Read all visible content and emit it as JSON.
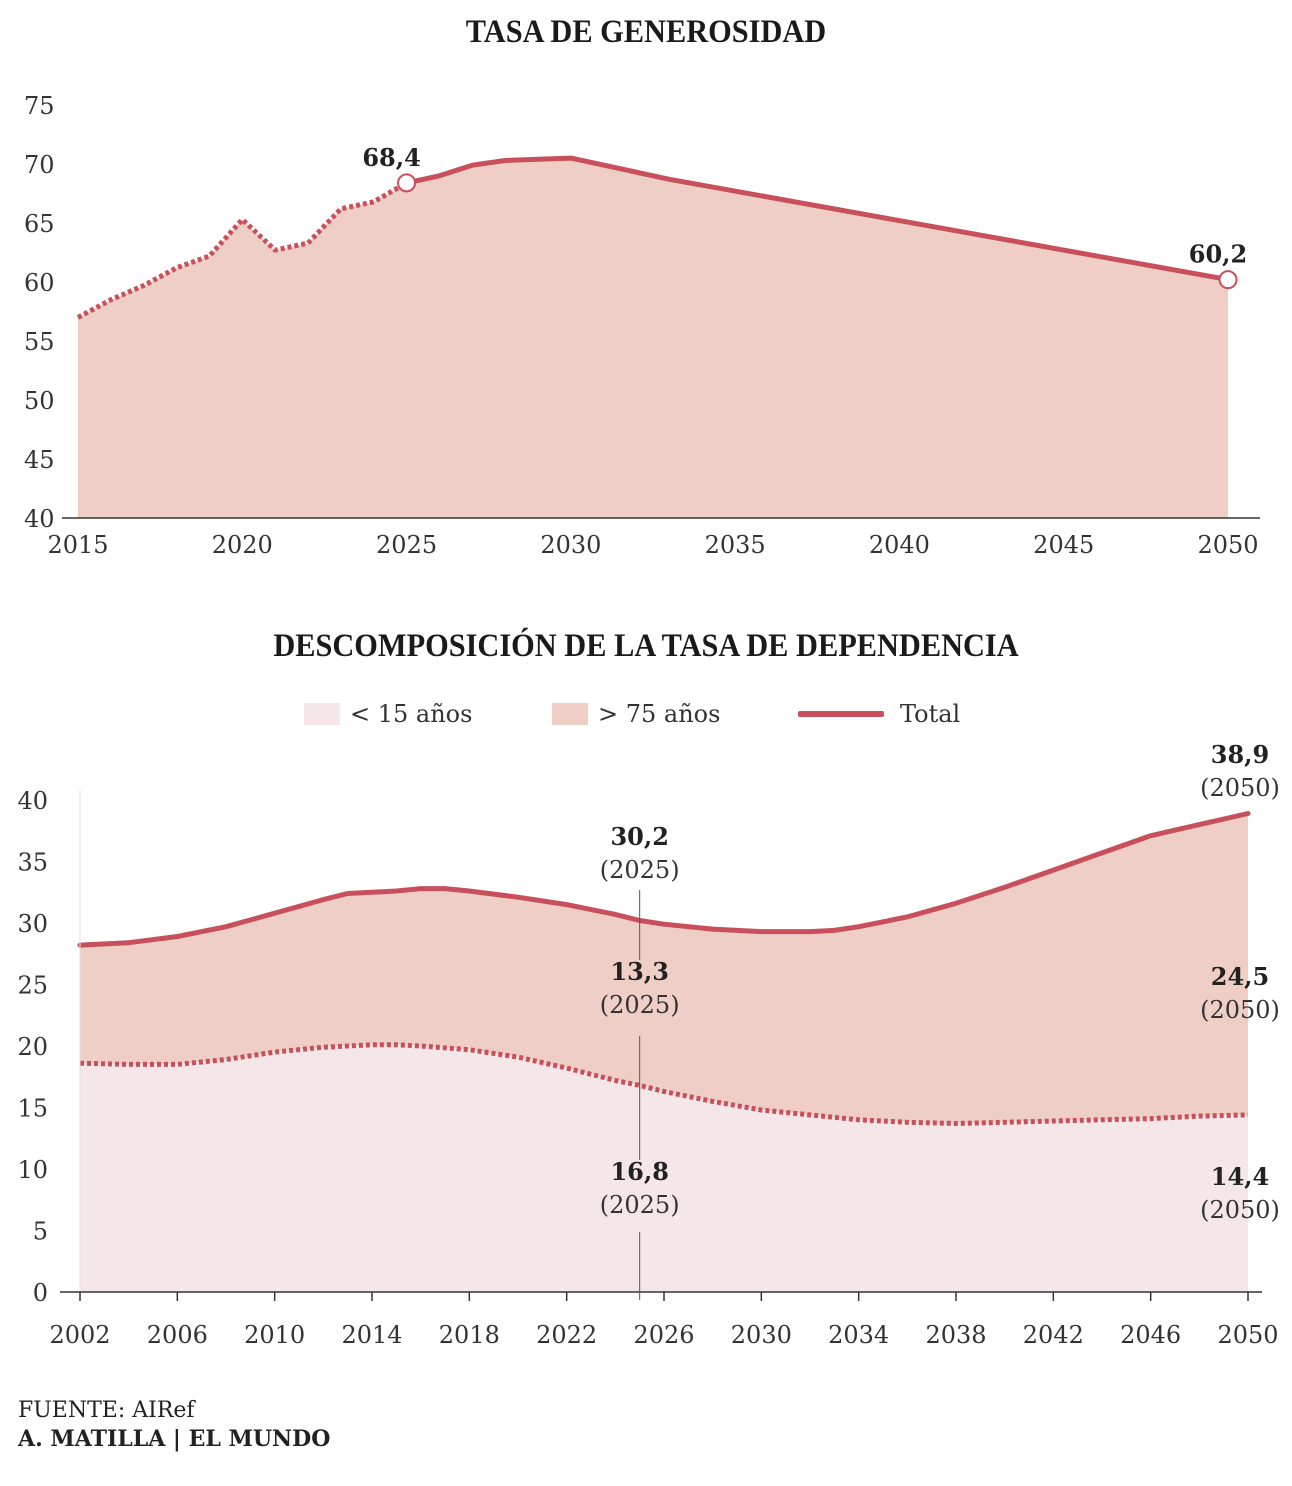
{
  "colors": {
    "line": "#c8505c",
    "area_top": "#efcec6",
    "area_bottom": "#f5e7e8",
    "marker_fill": "#ffffff"
  },
  "chart_data": [
    {
      "type": "area",
      "title": "TASA DE GENEROSIDAD",
      "xlim": [
        2015,
        2050
      ],
      "ylim": [
        40,
        75
      ],
      "x_ticks": [
        "2015",
        "2020",
        "2025",
        "2030",
        "2035",
        "2040",
        "2045",
        "2050"
      ],
      "y_ticks": [
        "40",
        "45",
        "50",
        "55",
        "60",
        "65",
        "70",
        "75"
      ],
      "series": [
        {
          "x": [
            2015,
            2016,
            2017,
            2018,
            2019,
            2020,
            2021,
            2022,
            2023,
            2024,
            2025,
            2026,
            2027,
            2028,
            2029,
            2030,
            2033,
            2050
          ],
          "y": [
            57.0,
            58.5,
            59.7,
            61.2,
            62.2,
            65.3,
            62.7,
            63.3,
            66.2,
            66.8,
            68.4,
            69.0,
            69.9,
            70.3,
            70.4,
            70.5,
            68.7,
            60.2
          ],
          "dashed_until": 2025
        }
      ],
      "annotations": [
        {
          "x": 2025,
          "y": 68.4,
          "label": "68,4"
        },
        {
          "x": 2050,
          "y": 60.2,
          "label": "60,2"
        }
      ]
    },
    {
      "type": "area",
      "title": "DESCOMPOSICIÓN DE LA TASA DE DEPENDENCIA",
      "xlim": [
        2002,
        2050
      ],
      "ylim": [
        0,
        40
      ],
      "x_ticks": [
        "2002",
        "2006",
        "2010",
        "2014",
        "2018",
        "2022",
        "2026",
        "2030",
        "2034",
        "2038",
        "2042",
        "2046",
        "2050"
      ],
      "y_ticks": [
        "0",
        "5",
        "10",
        "15",
        "20",
        "25",
        "30",
        "35",
        "40"
      ],
      "legend": [
        "< 15 años",
        "> 75 años",
        "Total"
      ],
      "series": [
        {
          "name": "< 15 años",
          "x": [
            2002,
            2004,
            2006,
            2008,
            2010,
            2012,
            2014,
            2015,
            2016,
            2018,
            2020,
            2022,
            2024,
            2025,
            2026,
            2028,
            2030,
            2032,
            2034,
            2036,
            2038,
            2040,
            2042,
            2044,
            2046,
            2048,
            2050
          ],
          "y": [
            18.6,
            18.5,
            18.5,
            18.9,
            19.5,
            19.9,
            20.1,
            20.1,
            20.0,
            19.7,
            19.1,
            18.2,
            17.2,
            16.8,
            16.3,
            15.5,
            14.8,
            14.4,
            14.0,
            13.8,
            13.7,
            13.8,
            13.9,
            14.0,
            14.1,
            14.3,
            14.4
          ],
          "dashed": true
        },
        {
          "name": "Total",
          "x": [
            2002,
            2004,
            2006,
            2008,
            2010,
            2012,
            2013,
            2014,
            2015,
            2016,
            2017,
            2018,
            2020,
            2022,
            2024,
            2025,
            2026,
            2028,
            2030,
            2032,
            2033,
            2034,
            2036,
            2038,
            2040,
            2042,
            2044,
            2046,
            2048,
            2050
          ],
          "y": [
            28.2,
            28.4,
            28.9,
            29.7,
            30.8,
            31.9,
            32.4,
            32.5,
            32.6,
            32.8,
            32.8,
            32.6,
            32.1,
            31.5,
            30.7,
            30.2,
            29.9,
            29.5,
            29.3,
            29.3,
            29.4,
            29.7,
            30.5,
            31.6,
            32.9,
            34.3,
            35.7,
            37.1,
            38.0,
            38.9
          ]
        }
      ],
      "marker_x": 2025,
      "annotations": [
        {
          "x": 2025,
          "value": "30,2",
          "year": "(2025)"
        },
        {
          "x": 2025,
          "value": "13,3",
          "year": "(2025)"
        },
        {
          "x": 2025,
          "value": "16,8",
          "year": "(2025)"
        },
        {
          "x": 2050,
          "value": "38,9",
          "year": "(2050)"
        },
        {
          "x": 2050,
          "value": "24,5",
          "year": "(2050)"
        },
        {
          "x": 2050,
          "value": "14,4",
          "year": "(2050)"
        }
      ]
    }
  ],
  "footer": {
    "source": "FUENTE: AIRef",
    "credit": "A. MATILLA | EL MUNDO"
  }
}
